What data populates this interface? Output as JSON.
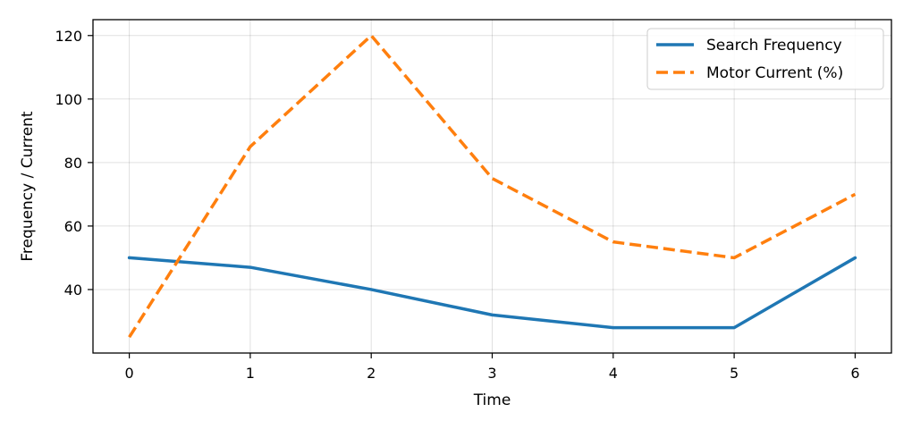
{
  "chart_data": {
    "type": "line",
    "title": "",
    "xlabel": "Time",
    "ylabel": "Frequency / Current",
    "x": [
      0,
      1,
      2,
      3,
      4,
      5,
      6
    ],
    "xlim": [
      -0.3,
      6.3
    ],
    "ylim": [
      20,
      125
    ],
    "xticks": [
      0,
      1,
      2,
      3,
      4,
      5,
      6
    ],
    "yticks": [
      40,
      60,
      80,
      100,
      120
    ],
    "grid": true,
    "legend_position": "top-right",
    "series": [
      {
        "name": "Search Frequency",
        "values": [
          50,
          47,
          40,
          32,
          28,
          28,
          50
        ],
        "color": "#1f77b4",
        "line_style": "solid"
      },
      {
        "name": "Motor Current (%)",
        "values": [
          25,
          85,
          120,
          75,
          55,
          50,
          70
        ],
        "color": "#ff7f0e",
        "line_style": "dashed"
      }
    ]
  }
}
